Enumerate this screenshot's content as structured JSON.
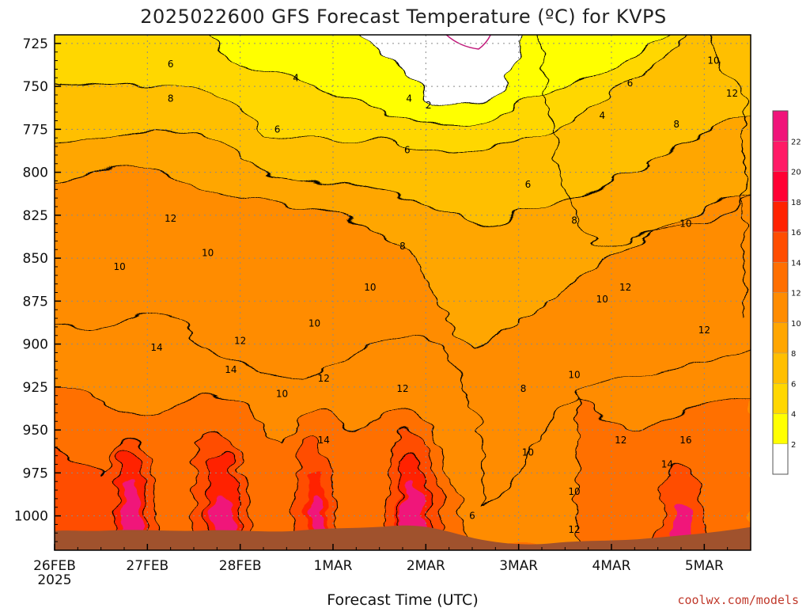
{
  "chart_data": {
    "type": "heatmap",
    "title": "2025022600 GFS Forecast Temperature (ºC) for KVPS",
    "xlabel": "Forecast Time (UTC)",
    "ylabel": "",
    "x_ticks": [
      "26FEB",
      "27FEB",
      "28FEB",
      "1MAR",
      "2MAR",
      "3MAR",
      "4MAR",
      "5MAR"
    ],
    "x_year": "2025",
    "y_ticks": [
      725,
      750,
      775,
      800,
      825,
      850,
      875,
      900,
      925,
      950,
      975,
      1000
    ],
    "ylim": [
      1020,
      720
    ],
    "xlim_days": [
      0,
      7.5
    ],
    "colorbar": {
      "levels": [
        2,
        4,
        6,
        8,
        10,
        12,
        14,
        16,
        18,
        20,
        22
      ],
      "colors": [
        "#ffffff",
        "#ffff00",
        "#ffd700",
        "#ffbf00",
        "#ffa600",
        "#ff8c00",
        "#ff6f00",
        "#ff4d00",
        "#ff2200",
        "#ff0033",
        "#ff1a66",
        "#f0147a"
      ]
    },
    "contour_labels": [
      {
        "t": 1.25,
        "p": 737,
        "v": "6"
      },
      {
        "t": 2.6,
        "p": 745,
        "v": "4"
      },
      {
        "t": 1.25,
        "p": 757,
        "v": "8"
      },
      {
        "t": 3.82,
        "p": 757,
        "v": "4"
      },
      {
        "t": 4.03,
        "p": 761,
        "v": "2"
      },
      {
        "t": 5.9,
        "p": 767,
        "v": "4"
      },
      {
        "t": 6.2,
        "p": 748,
        "v": "6"
      },
      {
        "t": 7.1,
        "p": 735,
        "v": "10"
      },
      {
        "t": 7.3,
        "p": 754,
        "v": "12"
      },
      {
        "t": 6.7,
        "p": 772,
        "v": "8"
      },
      {
        "t": 2.4,
        "p": 775,
        "v": "6"
      },
      {
        "t": 3.8,
        "p": 787,
        "v": "6"
      },
      {
        "t": 5.1,
        "p": 807,
        "v": "6"
      },
      {
        "t": 5.6,
        "p": 828,
        "v": "8"
      },
      {
        "t": 6.8,
        "p": 830,
        "v": "10"
      },
      {
        "t": 1.25,
        "p": 827,
        "v": "12"
      },
      {
        "t": 1.65,
        "p": 847,
        "v": "10"
      },
      {
        "t": 0.7,
        "p": 855,
        "v": "10"
      },
      {
        "t": 3.75,
        "p": 843,
        "v": "8"
      },
      {
        "t": 3.4,
        "p": 867,
        "v": "10"
      },
      {
        "t": 6.15,
        "p": 867,
        "v": "12"
      },
      {
        "t": 5.9,
        "p": 874,
        "v": "10"
      },
      {
        "t": 2.8,
        "p": 888,
        "v": "10"
      },
      {
        "t": 2.0,
        "p": 898,
        "v": "12"
      },
      {
        "t": 1.1,
        "p": 902,
        "v": "14"
      },
      {
        "t": 7.0,
        "p": 892,
        "v": "12"
      },
      {
        "t": 1.9,
        "p": 915,
        "v": "14"
      },
      {
        "t": 2.9,
        "p": 920,
        "v": "12"
      },
      {
        "t": 3.75,
        "p": 926,
        "v": "12"
      },
      {
        "t": 2.45,
        "p": 929,
        "v": "10"
      },
      {
        "t": 5.05,
        "p": 926,
        "v": "8"
      },
      {
        "t": 5.6,
        "p": 918,
        "v": "10"
      },
      {
        "t": 2.9,
        "p": 956,
        "v": "14"
      },
      {
        "t": 6.1,
        "p": 956,
        "v": "12"
      },
      {
        "t": 6.8,
        "p": 956,
        "v": "16"
      },
      {
        "t": 5.1,
        "p": 963,
        "v": "10"
      },
      {
        "t": 6.6,
        "p": 970,
        "v": "14"
      },
      {
        "t": 5.6,
        "p": 986,
        "v": "10"
      },
      {
        "t": 4.5,
        "p": 1000,
        "v": "6"
      },
      {
        "t": 5.6,
        "p": 1008,
        "v": "12"
      }
    ]
  },
  "credit": "coolwx.com/models"
}
